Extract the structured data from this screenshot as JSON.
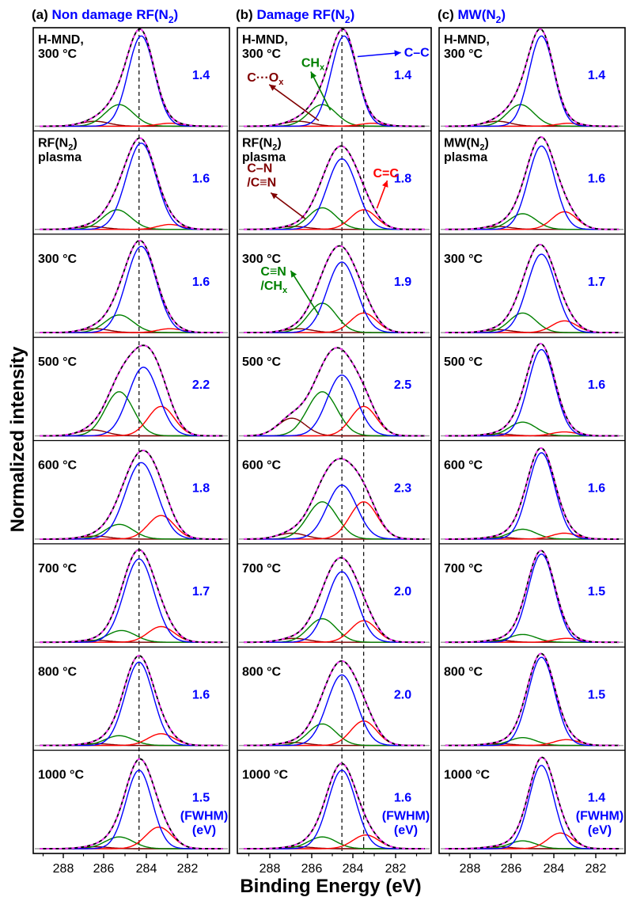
{
  "figure": {
    "ylabel": "Normalized intensity",
    "xlabel": "Binding Energy (eV)"
  },
  "colors": {
    "envelope": "#000000",
    "fit": "#ff33ff",
    "cc": "#0000ff",
    "ch": "#008000",
    "cox": "#800000",
    "c_eq_c": "#ff0000",
    "panel_title_letter": "#000000",
    "panel_title_text": "#0000ff",
    "fwhm": "#0000ff",
    "baseline": "#a0a0a0"
  },
  "chart_data": [
    {
      "type": "line",
      "panel": "(a)",
      "title_letter": "(a)",
      "title_main": "Non damage RF(N",
      "title_sub": "2",
      "title_end": ")",
      "x_ticks": [
        "288",
        "286",
        "284",
        "282"
      ],
      "xlim": [
        289.8,
        280.9
      ],
      "reference_lines": [
        285.0
      ],
      "fwhm_unit": [
        "(FWHM)",
        "(eV)"
      ],
      "rows": [
        {
          "label": [
            "H-MND,",
            "300 °C"
          ],
          "fwhm": "1.4",
          "peaks": {
            "cc": {
              "c": 284.9,
              "h": 0.92,
              "w": 1.4
            },
            "ch": {
              "c": 285.9,
              "h": 0.22,
              "w": 1.5
            },
            "cox": {
              "c": 287.0,
              "h": 0.05,
              "w": 1.5
            },
            "c_eq_c": {
              "c": 283.6,
              "h": 0.03,
              "w": 1.3
            }
          }
        },
        {
          "label": [
            "RF(N",
            "plasma"
          ],
          "label_sub": "2",
          "fwhm": "1.6",
          "peaks": {
            "cc": {
              "c": 284.9,
              "h": 0.88,
              "w": 1.6
            },
            "ch": {
              "c": 286.0,
              "h": 0.2,
              "w": 1.5
            },
            "cox": {
              "c": 287.2,
              "h": 0.03,
              "w": 1.5
            },
            "c_eq_c": {
              "c": 283.6,
              "h": 0.05,
              "w": 1.3
            }
          }
        },
        {
          "label": [
            "300 °C"
          ],
          "fwhm": "1.6",
          "peaks": {
            "cc": {
              "c": 284.9,
              "h": 0.88,
              "w": 1.6
            },
            "ch": {
              "c": 285.9,
              "h": 0.18,
              "w": 1.5
            },
            "cox": {
              "c": 287.0,
              "h": 0.04,
              "w": 1.5
            },
            "c_eq_c": {
              "c": 283.6,
              "h": 0.04,
              "w": 1.3
            }
          }
        },
        {
          "label": [
            "500 °C"
          ],
          "fwhm": "2.2",
          "peaks": {
            "cc": {
              "c": 284.8,
              "h": 0.7,
              "w": 1.6
            },
            "ch": {
              "c": 285.9,
              "h": 0.45,
              "w": 1.5
            },
            "cox": {
              "c": 287.1,
              "h": 0.06,
              "w": 1.5
            },
            "c_eq_c": {
              "c": 284.0,
              "h": 0.3,
              "w": 1.4
            }
          }
        },
        {
          "label": [
            "600 °C"
          ],
          "fwhm": "1.8",
          "peaks": {
            "cc": {
              "c": 284.9,
              "h": 0.78,
              "w": 1.7
            },
            "ch": {
              "c": 285.9,
              "h": 0.15,
              "w": 1.5
            },
            "cox": {
              "c": 287.0,
              "h": 0.03,
              "w": 1.5
            },
            "c_eq_c": {
              "c": 284.0,
              "h": 0.24,
              "w": 1.4
            }
          }
        },
        {
          "label": [
            "700 °C"
          ],
          "fwhm": "1.7",
          "peaks": {
            "cc": {
              "c": 285.0,
              "h": 0.85,
              "w": 1.6
            },
            "ch": {
              "c": 285.8,
              "h": 0.12,
              "w": 1.5
            },
            "cox": {
              "c": 287.0,
              "h": 0.02,
              "w": 1.5
            },
            "c_eq_c": {
              "c": 284.0,
              "h": 0.16,
              "w": 1.4
            }
          }
        },
        {
          "label": [
            "800 °C"
          ],
          "fwhm": "1.6",
          "peaks": {
            "cc": {
              "c": 285.0,
              "h": 0.85,
              "w": 1.5
            },
            "ch": {
              "c": 285.9,
              "h": 0.1,
              "w": 1.5
            },
            "cox": {
              "c": 287.0,
              "h": 0.02,
              "w": 1.5
            },
            "c_eq_c": {
              "c": 284.0,
              "h": 0.12,
              "w": 1.4
            }
          }
        },
        {
          "label": [
            "1000 °C"
          ],
          "fwhm": "1.5",
          "peaks": {
            "cc": {
              "c": 285.0,
              "h": 0.8,
              "w": 1.4
            },
            "ch": {
              "c": 285.9,
              "h": 0.12,
              "w": 1.5
            },
            "cox": {
              "c": 287.0,
              "h": 0.02,
              "w": 1.5
            },
            "c_eq_c": {
              "c": 284.1,
              "h": 0.22,
              "w": 1.4
            }
          }
        }
      ]
    },
    {
      "type": "line",
      "panel": "(b)",
      "title_letter": "(b)",
      "title_main": "Damage RF(N",
      "title_sub": "2",
      "title_end": ")",
      "x_ticks": [
        "288",
        "286",
        "284",
        "282"
      ],
      "xlim": [
        289.8,
        280.9
      ],
      "reference_lines": [
        285.0,
        284.0
      ],
      "fwhm_unit": [
        "(FWHM)",
        "(eV)"
      ],
      "rows": [
        {
          "label": [
            "H-MND,",
            "300 °C"
          ],
          "fwhm": "1.4",
          "peaks": {
            "cc": {
              "c": 284.9,
              "h": 0.92,
              "w": 1.4
            },
            "ch": {
              "c": 285.9,
              "h": 0.22,
              "w": 1.5
            },
            "cox": {
              "c": 287.0,
              "h": 0.05,
              "w": 1.5
            },
            "c_eq_c": {
              "c": 283.6,
              "h": 0.03,
              "w": 1.3
            }
          },
          "annotations": [
            {
              "lines": [
                "C–C"
              ],
              "color": "cc",
              "tx": 0.86,
              "ty": 0.28,
              "ax": 0.62,
              "ay": 0.28,
              "arrow_to_text": true
            },
            {
              "lines": [
                "C···O"
              ],
              "sub": "x",
              "color": "cox",
              "tx": 0.05,
              "ty": 0.52,
              "ax": 0.42,
              "ay": 0.9
            },
            {
              "lines": [
                "CH"
              ],
              "sub": "x",
              "color": "ch",
              "tx": 0.33,
              "ty": 0.38,
              "ax": 0.48,
              "ay": 0.8
            }
          ]
        },
        {
          "label": [
            "RF(N",
            "plasma"
          ],
          "label_sub": "2",
          "fwhm": "1.8",
          "peaks": {
            "cc": {
              "c": 285.0,
              "h": 0.72,
              "w": 1.6
            },
            "ch": {
              "c": 285.9,
              "h": 0.22,
              "w": 1.5
            },
            "cox": {
              "c": 287.2,
              "h": 0.03,
              "w": 1.5
            },
            "c_eq_c": {
              "c": 284.0,
              "h": 0.2,
              "w": 1.4
            }
          },
          "annotations": [
            {
              "lines": [
                "C–N",
                "/C≡N"
              ],
              "color": "cox",
              "tx": 0.05,
              "ty": 0.4,
              "ax": 0.35,
              "ay": 0.85
            },
            {
              "lines": [
                "C=C"
              ],
              "color": "c_eq_c",
              "tx": 0.7,
              "ty": 0.45,
              "ax": 0.72,
              "ay": 0.75,
              "arrow_to_text": false
            }
          ]
        },
        {
          "label": [
            "300 °C"
          ],
          "fwhm": "1.9",
          "peaks": {
            "cc": {
              "c": 285.0,
              "h": 0.72,
              "w": 1.6
            },
            "ch": {
              "c": 285.9,
              "h": 0.3,
              "w": 1.5
            },
            "cox": {
              "c": 287.0,
              "h": 0.04,
              "w": 1.5
            },
            "c_eq_c": {
              "c": 284.0,
              "h": 0.2,
              "w": 1.4
            }
          },
          "annotations": [
            {
              "lines": [
                "C≡N",
                "/CH"
              ],
              "sub": "x",
              "color": "ch",
              "tx": 0.12,
              "ty": 0.4,
              "ax": 0.42,
              "ay": 0.78
            }
          ]
        },
        {
          "label": [
            "500 °C"
          ],
          "fwhm": "2.5",
          "peaks": {
            "cc": {
              "c": 285.0,
              "h": 0.62,
              "w": 1.6
            },
            "ch": {
              "c": 285.9,
              "h": 0.45,
              "w": 1.6
            },
            "cox": {
              "c": 287.3,
              "h": 0.18,
              "w": 1.5
            },
            "c_eq_c": {
              "c": 284.0,
              "h": 0.3,
              "w": 1.4
            }
          }
        },
        {
          "label": [
            "600 °C"
          ],
          "fwhm": "2.3",
          "peaks": {
            "cc": {
              "c": 285.0,
              "h": 0.55,
              "w": 1.6
            },
            "ch": {
              "c": 285.9,
              "h": 0.38,
              "w": 1.6
            },
            "cox": {
              "c": 287.3,
              "h": 0.06,
              "w": 1.5
            },
            "c_eq_c": {
              "c": 284.0,
              "h": 0.38,
              "w": 1.5
            }
          }
        },
        {
          "label": [
            "700 °C"
          ],
          "fwhm": "2.0",
          "peaks": {
            "cc": {
              "c": 285.0,
              "h": 0.72,
              "w": 1.6
            },
            "ch": {
              "c": 285.9,
              "h": 0.24,
              "w": 1.5
            },
            "cox": {
              "c": 287.2,
              "h": 0.04,
              "w": 1.5
            },
            "c_eq_c": {
              "c": 284.0,
              "h": 0.22,
              "w": 1.4
            }
          }
        },
        {
          "label": [
            "800 °C"
          ],
          "fwhm": "2.0",
          "peaks": {
            "cc": {
              "c": 285.0,
              "h": 0.72,
              "w": 1.6
            },
            "ch": {
              "c": 285.9,
              "h": 0.22,
              "w": 1.5
            },
            "cox": {
              "c": 287.2,
              "h": 0.03,
              "w": 1.5
            },
            "c_eq_c": {
              "c": 284.0,
              "h": 0.25,
              "w": 1.4
            }
          }
        },
        {
          "label": [
            "1000 °C"
          ],
          "fwhm": "1.6",
          "peaks": {
            "cc": {
              "c": 285.0,
              "h": 0.8,
              "w": 1.5
            },
            "ch": {
              "c": 285.9,
              "h": 0.12,
              "w": 1.5
            },
            "cox": {
              "c": 287.0,
              "h": 0.02,
              "w": 1.5
            },
            "c_eq_c": {
              "c": 283.9,
              "h": 0.14,
              "w": 1.4
            }
          }
        }
      ]
    },
    {
      "type": "line",
      "panel": "(c)",
      "title_letter": "(c)",
      "title_main": "MW(N",
      "title_sub": "2",
      "title_end": ")",
      "x_ticks": [
        "288",
        "286",
        "284",
        "282"
      ],
      "xlim": [
        289.8,
        280.9
      ],
      "reference_lines": [],
      "fwhm_unit": [
        "(FWHM)",
        "(eV)"
      ],
      "rows": [
        {
          "label": [
            "H-MND,",
            "300 °C"
          ],
          "fwhm": "1.4",
          "peaks": {
            "cc": {
              "c": 284.9,
              "h": 0.92,
              "w": 1.4
            },
            "ch": {
              "c": 285.9,
              "h": 0.22,
              "w": 1.5
            },
            "cox": {
              "c": 287.0,
              "h": 0.05,
              "w": 1.5
            },
            "c_eq_c": {
              "c": 283.6,
              "h": 0.03,
              "w": 1.3
            }
          }
        },
        {
          "label": [
            "MW(N",
            "plasma"
          ],
          "label_sub": "2",
          "fwhm": "1.6",
          "peaks": {
            "cc": {
              "c": 284.9,
              "h": 0.85,
              "w": 1.5
            },
            "ch": {
              "c": 285.8,
              "h": 0.16,
              "w": 1.5
            },
            "cox": {
              "c": 287.0,
              "h": 0.03,
              "w": 1.5
            },
            "c_eq_c": {
              "c": 283.8,
              "h": 0.18,
              "w": 1.4
            }
          }
        },
        {
          "label": [
            "300 °C"
          ],
          "fwhm": "1.7",
          "peaks": {
            "cc": {
              "c": 284.9,
              "h": 0.8,
              "w": 1.6
            },
            "ch": {
              "c": 285.8,
              "h": 0.2,
              "w": 1.5
            },
            "cox": {
              "c": 287.0,
              "h": 0.03,
              "w": 1.5
            },
            "c_eq_c": {
              "c": 283.8,
              "h": 0.12,
              "w": 1.4
            }
          }
        },
        {
          "label": [
            "500 °C"
          ],
          "fwhm": "1.6",
          "peaks": {
            "cc": {
              "c": 284.9,
              "h": 0.88,
              "w": 1.5
            },
            "ch": {
              "c": 285.8,
              "h": 0.14,
              "w": 1.5
            },
            "cox": {
              "c": 287.0,
              "h": 0.02,
              "w": 1.5
            },
            "c_eq_c": {
              "c": 283.8,
              "h": 0.04,
              "w": 1.4
            }
          }
        },
        {
          "label": [
            "600 °C"
          ],
          "fwhm": "1.6",
          "peaks": {
            "cc": {
              "c": 284.9,
              "h": 0.88,
              "w": 1.5
            },
            "ch": {
              "c": 285.8,
              "h": 0.1,
              "w": 1.5
            },
            "cox": {
              "c": 287.0,
              "h": 0.02,
              "w": 1.5
            },
            "c_eq_c": {
              "c": 283.8,
              "h": 0.06,
              "w": 1.4
            }
          }
        },
        {
          "label": [
            "700 °C"
          ],
          "fwhm": "1.5",
          "peaks": {
            "cc": {
              "c": 284.9,
              "h": 0.9,
              "w": 1.5
            },
            "ch": {
              "c": 285.8,
              "h": 0.08,
              "w": 1.5
            },
            "cox": {
              "c": 287.0,
              "h": 0.02,
              "w": 1.5
            },
            "c_eq_c": {
              "c": 283.7,
              "h": 0.04,
              "w": 1.4
            }
          }
        },
        {
          "label": [
            "800 °C"
          ],
          "fwhm": "1.5",
          "peaks": {
            "cc": {
              "c": 284.9,
              "h": 0.9,
              "w": 1.5
            },
            "ch": {
              "c": 285.8,
              "h": 0.08,
              "w": 1.5
            },
            "cox": {
              "c": 287.0,
              "h": 0.02,
              "w": 1.5
            },
            "c_eq_c": {
              "c": 283.7,
              "h": 0.06,
              "w": 1.4
            }
          }
        },
        {
          "label": [
            "1000 °C"
          ],
          "fwhm": "1.4",
          "peaks": {
            "cc": {
              "c": 284.9,
              "h": 0.85,
              "w": 1.4
            },
            "ch": {
              "c": 285.8,
              "h": 0.08,
              "w": 1.5
            },
            "cox": {
              "c": 287.0,
              "h": 0.02,
              "w": 1.5
            },
            "c_eq_c": {
              "c": 284.0,
              "h": 0.16,
              "w": 1.4
            }
          }
        }
      ]
    }
  ]
}
